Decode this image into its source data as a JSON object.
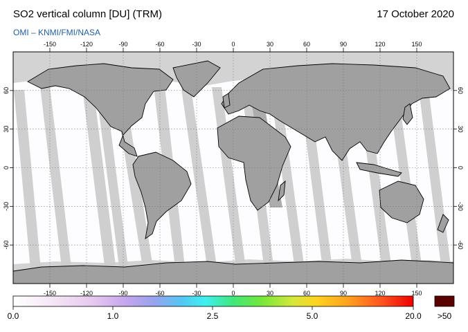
{
  "header": {
    "title": "SO2 vertical column [DU] (TRM)",
    "date": "17 October 2020",
    "credit": "OMI  –  KNMI/FMI/NASA"
  },
  "map": {
    "lon_ticks": [
      "-150",
      "-120",
      "-90",
      "-60",
      "-30",
      "0",
      "30",
      "60",
      "90",
      "120",
      "150"
    ],
    "lat_ticks": [
      "60",
      "30",
      "0",
      "-30",
      "-60"
    ],
    "land_gray": "#a0a0a0",
    "swath_gray": "#cdcdcd",
    "nodata_gray": "#d3d3d3",
    "ocean_white": "#ffffff"
  },
  "colorbar": {
    "labels": [
      {
        "text": "0.0"
      },
      {
        "text": "1.0"
      },
      {
        "text": "2.5"
      },
      {
        "text": "5.0"
      },
      {
        "text": "20.0"
      }
    ],
    "over_label": ">50",
    "over_color": "#5a0000"
  }
}
